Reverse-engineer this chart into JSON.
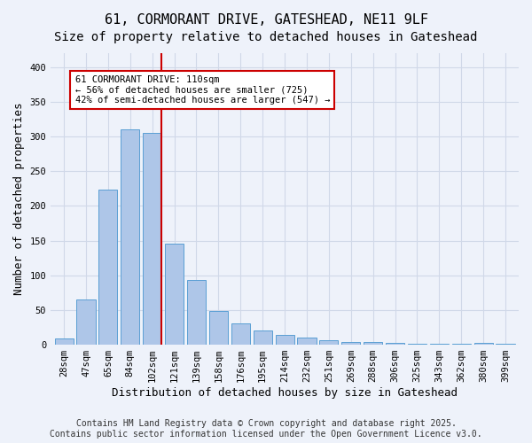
{
  "title_line1": "61, CORMORANT DRIVE, GATESHEAD, NE11 9LF",
  "title_line2": "Size of property relative to detached houses in Gateshead",
  "xlabel": "Distribution of detached houses by size in Gateshead",
  "ylabel": "Number of detached properties",
  "categories": [
    "28sqm",
    "47sqm",
    "65sqm",
    "84sqm",
    "102sqm",
    "121sqm",
    "139sqm",
    "158sqm",
    "176sqm",
    "195sqm",
    "214sqm",
    "232sqm",
    "251sqm",
    "269sqm",
    "288sqm",
    "306sqm",
    "325sqm",
    "343sqm",
    "362sqm",
    "380sqm",
    "399sqm"
  ],
  "values": [
    9,
    65,
    224,
    310,
    305,
    145,
    93,
    49,
    31,
    20,
    14,
    10,
    7,
    4,
    4,
    3,
    2,
    2,
    2,
    3,
    2
  ],
  "bar_color": "#aec6e8",
  "bar_edge_color": "#5a9fd4",
  "vline_x": 4.42,
  "vline_color": "#cc0000",
  "annotation_text": "61 CORMORANT DRIVE: 110sqm\n← 56% of detached houses are smaller (725)\n42% of semi-detached houses are larger (547) →",
  "annotation_box_color": "#ffffff",
  "annotation_box_edge": "#cc0000",
  "ylim": [
    0,
    420
  ],
  "yticks": [
    0,
    50,
    100,
    150,
    200,
    250,
    300,
    350,
    400
  ],
  "grid_color": "#d0d8e8",
  "background_color": "#eef2fa",
  "footer_text": "Contains HM Land Registry data © Crown copyright and database right 2025.\nContains public sector information licensed under the Open Government Licence v3.0.",
  "title_fontsize": 11,
  "subtitle_fontsize": 10,
  "xlabel_fontsize": 9,
  "ylabel_fontsize": 9,
  "tick_fontsize": 7.5,
  "annotation_fontsize": 7.5,
  "footer_fontsize": 7
}
